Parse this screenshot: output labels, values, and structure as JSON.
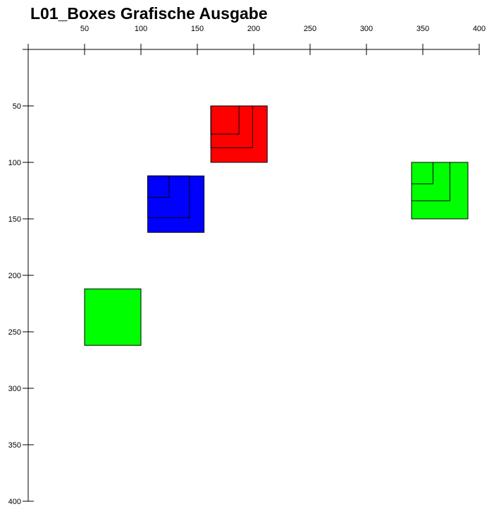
{
  "title": "L01_Boxes Grafische Ausgabe",
  "axes": {
    "x_range": [
      0,
      400
    ],
    "y_range": [
      0,
      400
    ],
    "x_ticks": [
      "50",
      "100",
      "150",
      "200",
      "250",
      "300",
      "350",
      "400"
    ],
    "y_ticks": [
      "50",
      "100",
      "150",
      "200",
      "250",
      "300",
      "350",
      "400"
    ]
  },
  "boxes": [
    {
      "name": "red-box",
      "color": "#ff0000",
      "x": 162,
      "y": 50,
      "size": 50,
      "nested": [
        [
          162,
          50,
          37,
          37
        ],
        [
          162,
          50,
          25,
          25
        ]
      ]
    },
    {
      "name": "blue-box",
      "color": "#0000ff",
      "x": 106,
      "y": 112,
      "size": 50,
      "nested": [
        [
          106,
          112,
          37,
          37
        ],
        [
          106,
          112,
          19,
          19
        ]
      ]
    },
    {
      "name": "green-box",
      "color": "#00ff00",
      "x": 340,
      "y": 100,
      "size": 50,
      "nested": [
        [
          340,
          100,
          34,
          34
        ],
        [
          340,
          100,
          19,
          19
        ]
      ]
    },
    {
      "name": "green-box-lower",
      "color": "#00ff00",
      "x": 50,
      "y": 212,
      "size": 50,
      "nested": []
    }
  ]
}
